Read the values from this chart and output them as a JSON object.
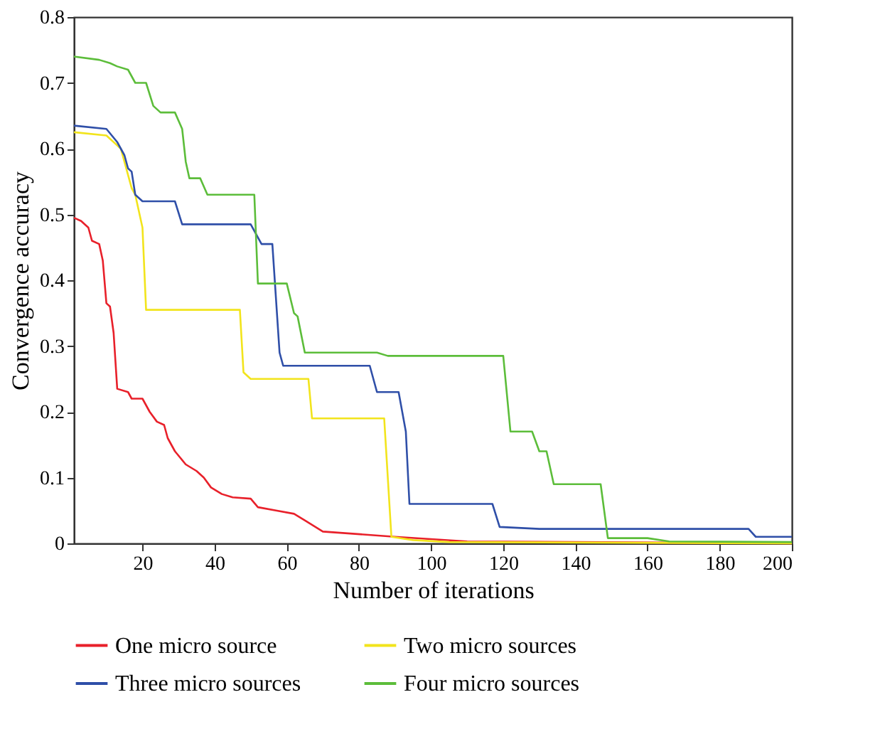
{
  "chart_data": {
    "type": "line",
    "xlabel": "Number of iterations",
    "ylabel": "Convergence accuracy",
    "xlim": [
      1,
      200
    ],
    "xticks": [
      20,
      40,
      60,
      80,
      100,
      120,
      140,
      160,
      180,
      200
    ],
    "ylim": [
      0,
      0.8
    ],
    "yticks": [
      0,
      0.1,
      0.2,
      0.3,
      0.4,
      0.5,
      0.6,
      0.7,
      0.8
    ],
    "grid": false,
    "legend": "bottom",
    "marker": "none",
    "line_style": "solid",
    "series": [
      {
        "name": "One micro source",
        "color": "#e8202a",
        "x": [
          1,
          3,
          5,
          6,
          8,
          9,
          10,
          11,
          12,
          13,
          16,
          17,
          20,
          22,
          24,
          26,
          27,
          29,
          32,
          35,
          37,
          39,
          42,
          45,
          50,
          52,
          57,
          62,
          65,
          70,
          90,
          110,
          200
        ],
        "values": [
          0.495,
          0.49,
          0.48,
          0.46,
          0.455,
          0.43,
          0.365,
          0.36,
          0.32,
          0.235,
          0.23,
          0.22,
          0.22,
          0.2,
          0.185,
          0.18,
          0.16,
          0.14,
          0.12,
          0.11,
          0.1,
          0.085,
          0.075,
          0.07,
          0.068,
          0.055,
          0.05,
          0.045,
          0.035,
          0.018,
          0.01,
          0.003,
          0
        ]
      },
      {
        "name": "Two micro sources",
        "color": "#f2e41c",
        "x": [
          1,
          10,
          14,
          15,
          17,
          18,
          20,
          21,
          47,
          48,
          50,
          66,
          67,
          87,
          89,
          95,
          105,
          200
        ],
        "values": [
          0.625,
          0.62,
          0.6,
          0.58,
          0.54,
          0.53,
          0.48,
          0.355,
          0.355,
          0.26,
          0.25,
          0.25,
          0.19,
          0.19,
          0.01,
          0.005,
          0.002,
          0
        ]
      },
      {
        "name": "Three micro sources",
        "color": "#2f4fa8",
        "x": [
          1,
          10,
          13,
          15,
          16,
          17,
          18,
          20,
          29,
          31,
          50,
          53,
          56,
          58,
          59,
          83,
          85,
          91,
          93,
          94,
          117,
          119,
          130,
          188,
          190,
          200
        ],
        "values": [
          0.635,
          0.63,
          0.61,
          0.59,
          0.57,
          0.565,
          0.53,
          0.52,
          0.52,
          0.485,
          0.485,
          0.455,
          0.455,
          0.29,
          0.27,
          0.27,
          0.23,
          0.23,
          0.17,
          0.06,
          0.06,
          0.025,
          0.022,
          0.022,
          0.01,
          0.01
        ]
      },
      {
        "name": "Four micro sources",
        "color": "#5cbd3a",
        "x": [
          1,
          8,
          11,
          13,
          16,
          18,
          21,
          23,
          25,
          29,
          31,
          32,
          33,
          36,
          38,
          51,
          52,
          60,
          62,
          63,
          65,
          85,
          88,
          120,
          122,
          128,
          130,
          132,
          134,
          147,
          149,
          160,
          166,
          200
        ],
        "values": [
          0.74,
          0.735,
          0.73,
          0.725,
          0.72,
          0.7,
          0.7,
          0.665,
          0.655,
          0.655,
          0.63,
          0.58,
          0.555,
          0.555,
          0.53,
          0.53,
          0.395,
          0.395,
          0.35,
          0.345,
          0.29,
          0.29,
          0.285,
          0.285,
          0.17,
          0.17,
          0.14,
          0.14,
          0.09,
          0.09,
          0.008,
          0.008,
          0.003,
          0.002
        ]
      }
    ]
  }
}
